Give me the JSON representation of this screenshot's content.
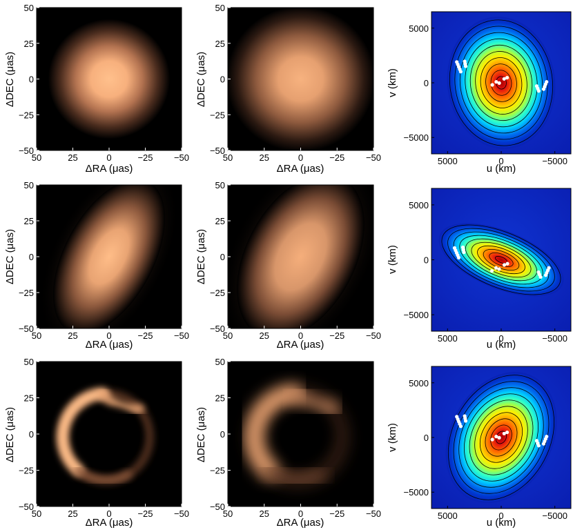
{
  "figure": {
    "image_rows": [
      {
        "row": 1,
        "panels": [
          {
            "type": "brightness-image",
            "shape": "round-gaussian",
            "blur": "low"
          },
          {
            "type": "brightness-image",
            "shape": "round-gaussian",
            "blur": "high"
          }
        ],
        "visibility": {
          "type": "uv-contour",
          "shape": "circular"
        }
      },
      {
        "row": 2,
        "panels": [
          {
            "type": "brightness-image",
            "shape": "elongated-gaussian",
            "blur": "low"
          },
          {
            "type": "brightness-image",
            "shape": "elongated-gaussian",
            "blur": "high"
          }
        ],
        "visibility": {
          "type": "uv-contour",
          "shape": "elongated"
        }
      },
      {
        "row": 3,
        "panels": [
          {
            "type": "brightness-image",
            "shape": "crescent-ring",
            "blur": "low"
          },
          {
            "type": "brightness-image",
            "shape": "crescent-ring",
            "blur": "high"
          }
        ],
        "visibility": {
          "type": "uv-contour",
          "shape": "asymmetric"
        }
      }
    ],
    "image_axes": {
      "xlabel": "ΔRA (μas)",
      "ylabel": "ΔDEC (μas)",
      "xticks": [
        "50",
        "25",
        "0",
        "−25",
        "−50"
      ],
      "yticks": [
        "50",
        "25",
        "0",
        "−25",
        "−50"
      ]
    },
    "uv_axes": {
      "xlabel": "u (km)",
      "ylabel": "v (km)",
      "xticks": [
        "5000",
        "0",
        "−5000"
      ],
      "yticks": [
        "5000",
        "0",
        "−5000"
      ]
    },
    "colors": {
      "image_bg": "#000000",
      "image_glow": "#ffbf8a",
      "uv_low": "#0a1fb8",
      "uv_high": "#b40000",
      "uv_points": "#ffffff"
    }
  },
  "chart_data": [
    {
      "type": "heatmap",
      "panel": "row1-col1",
      "xlabel": "ΔRA (μas)",
      "ylabel": "ΔDEC (μas)",
      "xlim": [
        50,
        -50
      ],
      "ylim": [
        -50,
        50
      ],
      "feature": {
        "shape": "round-gaussian",
        "center": [
          0,
          0
        ],
        "sigma": [
          14,
          14
        ]
      }
    },
    {
      "type": "heatmap",
      "panel": "row1-col2",
      "xlabel": "ΔRA (μas)",
      "ylabel": "ΔDEC (μas)",
      "xlim": [
        50,
        -50
      ],
      "ylim": [
        -50,
        50
      ],
      "feature": {
        "shape": "round-gaussian",
        "center": [
          0,
          0
        ],
        "sigma": [
          17,
          17
        ]
      }
    },
    {
      "type": "heatmap",
      "panel": "row1-col3",
      "xlabel": "u (km)",
      "ylabel": "v (km)",
      "xlim": [
        6500,
        -6500
      ],
      "ylim": [
        -6500,
        6500
      ],
      "contour_levels": 10
    },
    {
      "type": "heatmap",
      "panel": "row2-col1",
      "xlabel": "ΔRA (μas)",
      "ylabel": "ΔDEC (μas)",
      "xlim": [
        50,
        -50
      ],
      "ylim": [
        -50,
        50
      ],
      "feature": {
        "shape": "elongated-gaussian",
        "center": [
          0,
          0
        ],
        "sigma": [
          14,
          38
        ],
        "tilt_deg": 28
      }
    },
    {
      "type": "heatmap",
      "panel": "row2-col2",
      "xlabel": "ΔRA (μas)",
      "ylabel": "ΔDEC (μas)",
      "xlim": [
        50,
        -50
      ],
      "ylim": [
        -50,
        50
      ],
      "feature": {
        "shape": "elongated-gaussian",
        "center": [
          0,
          0
        ],
        "sigma": [
          17,
          40
        ],
        "tilt_deg": 28
      }
    },
    {
      "type": "heatmap",
      "panel": "row2-col3",
      "xlabel": "u (km)",
      "ylabel": "v (km)",
      "xlim": [
        6500,
        -6500
      ],
      "ylim": [
        -6500,
        6500
      ],
      "contour_levels": 10
    },
    {
      "type": "heatmap",
      "panel": "row3-col1",
      "xlabel": "ΔRA (μas)",
      "ylabel": "ΔDEC (μas)",
      "xlim": [
        50,
        -50
      ],
      "ylim": [
        -50,
        50
      ],
      "feature": {
        "shape": "crescent-ring",
        "center": [
          2,
          -2
        ],
        "radius": 30
      }
    },
    {
      "type": "heatmap",
      "panel": "row3-col2",
      "xlabel": "ΔRA (μas)",
      "ylabel": "ΔDEC (μas)",
      "xlim": [
        50,
        -50
      ],
      "ylim": [
        -50,
        50
      ],
      "feature": {
        "shape": "crescent-ring",
        "center": [
          2,
          -2
        ],
        "radius": 30,
        "blurred": true
      }
    },
    {
      "type": "heatmap",
      "panel": "row3-col3",
      "xlabel": "u (km)",
      "ylabel": "v (km)",
      "xlim": [
        6500,
        -6500
      ],
      "ylim": [
        -6500,
        6500
      ],
      "contour_levels": 10
    }
  ]
}
